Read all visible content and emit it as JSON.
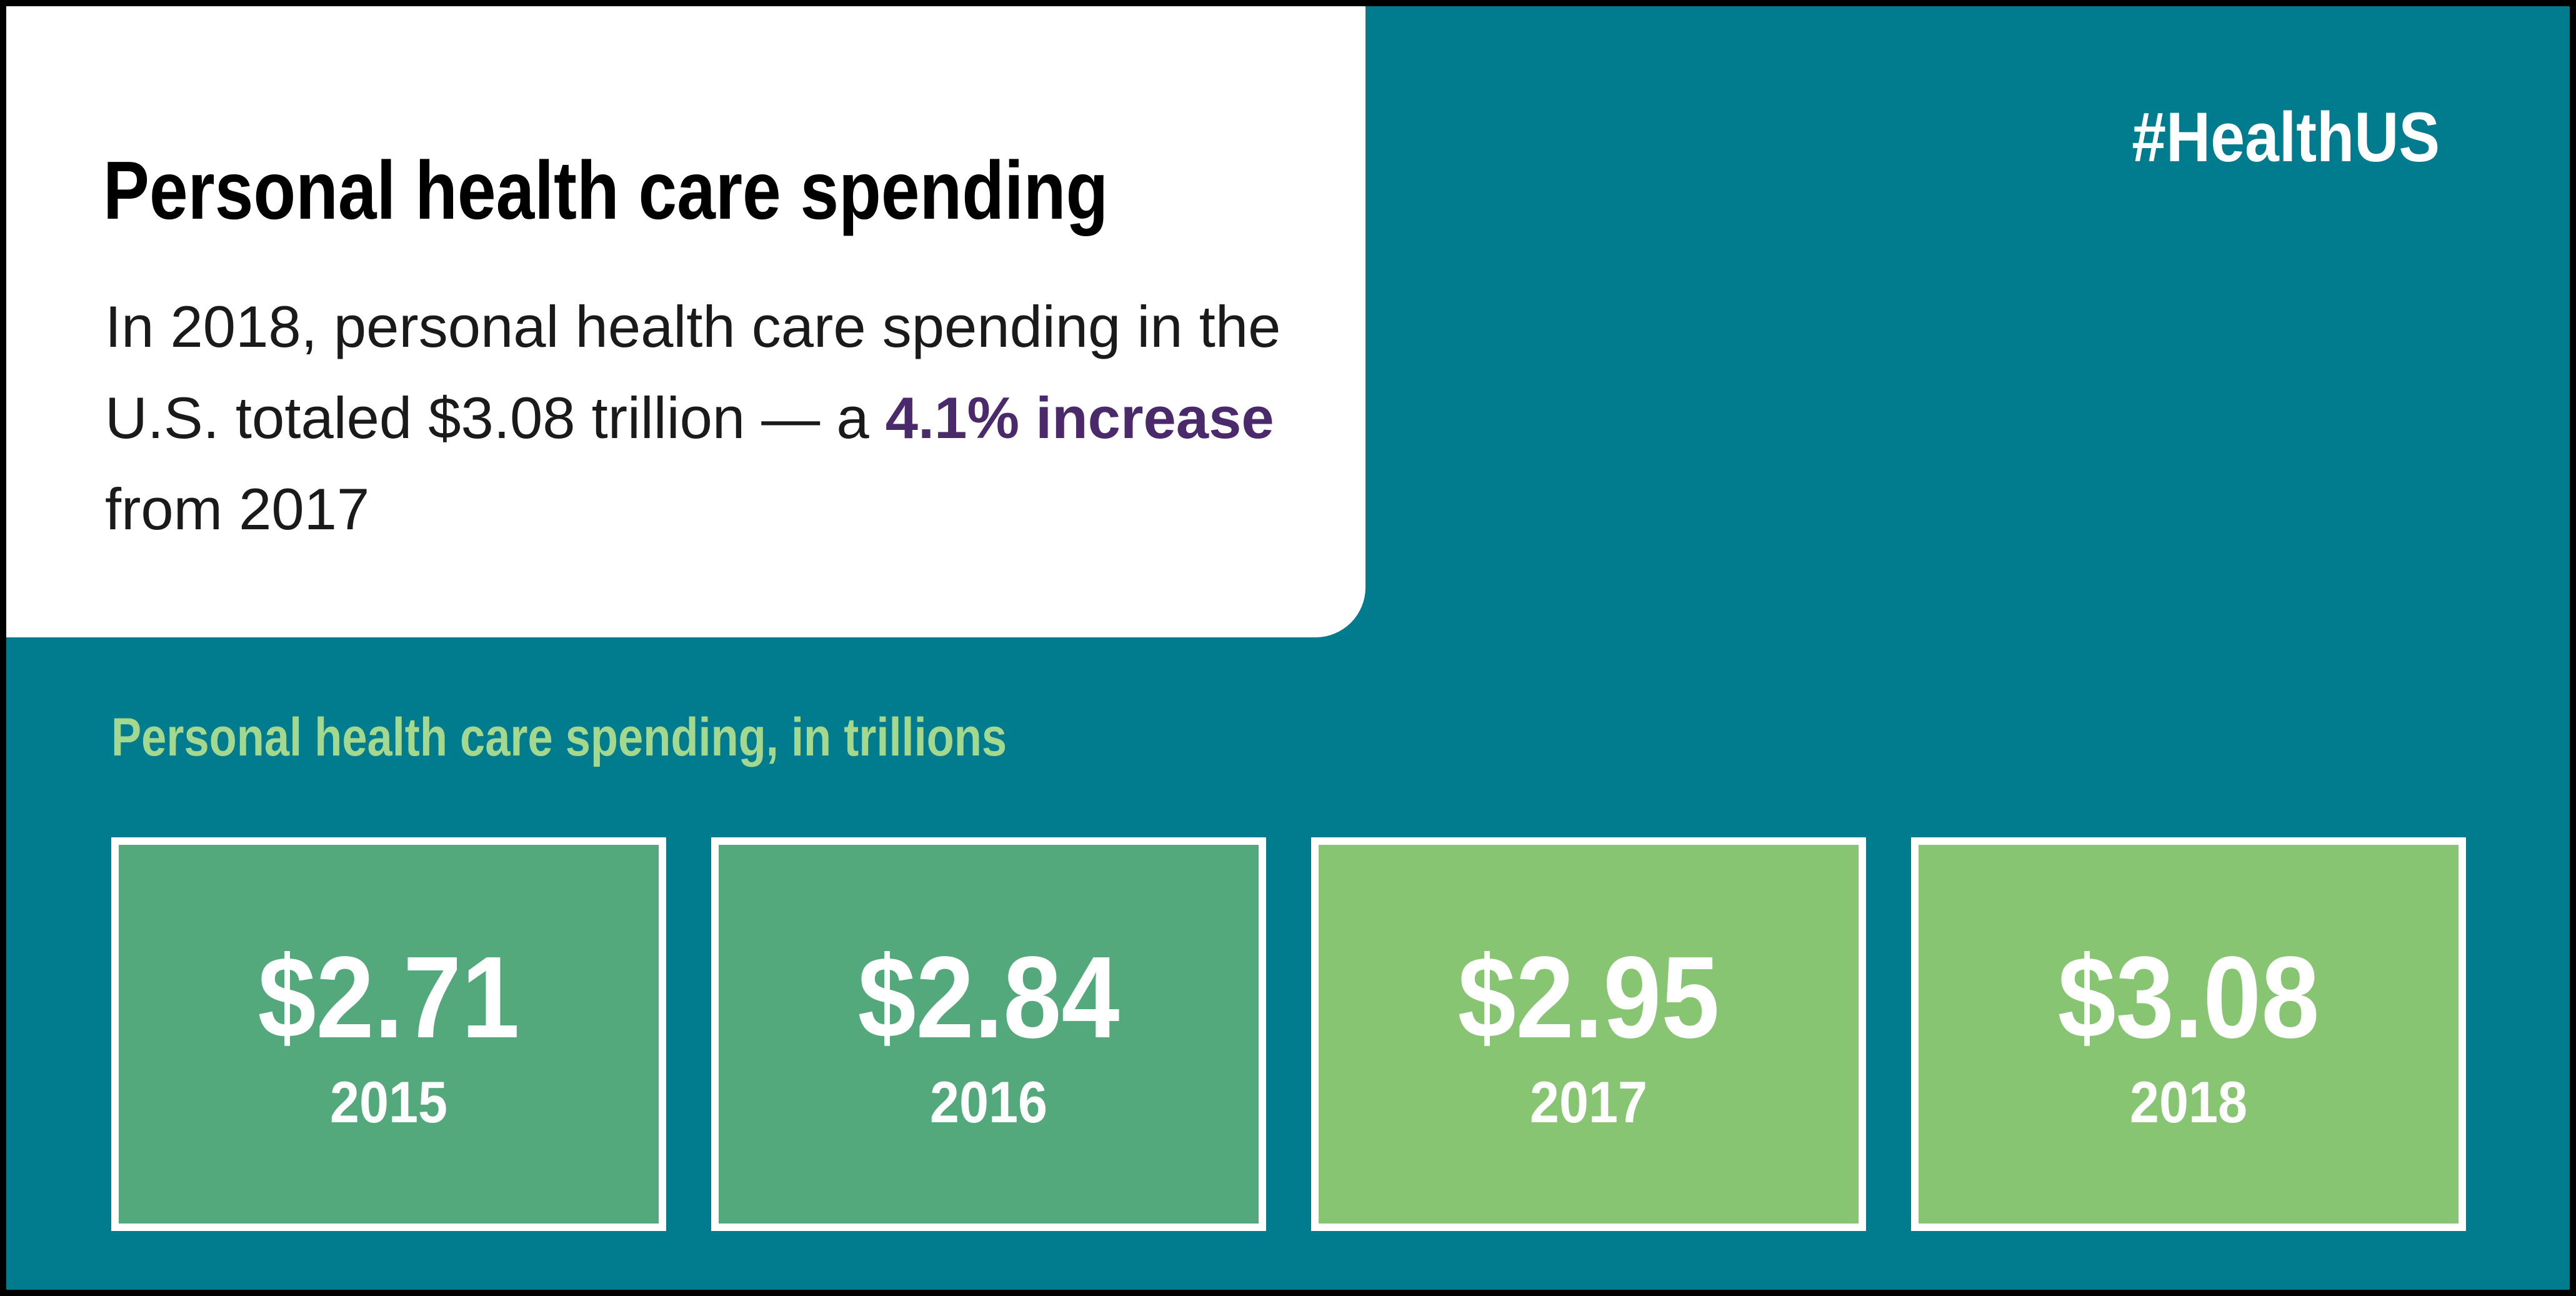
{
  "header": {
    "title": "Personal health care spending",
    "summary_before": "In 2018, personal health care spending in the U.S. totaled $3.08 trillion — a ",
    "summary_highlight": "4.1% increase",
    "summary_after": " from 2017",
    "hashtag": "#HealthUS"
  },
  "chart_data": {
    "type": "table",
    "title": "Personal health care spending,  in trillions",
    "categories": [
      "2015",
      "2016",
      "2017",
      "2018"
    ],
    "values": [
      2.71,
      2.84,
      2.95,
      3.08
    ],
    "value_labels": [
      "$2.71",
      "$2.84",
      "$2.95",
      "$3.08"
    ]
  },
  "colors": {
    "background": "#017b8e",
    "panel": "#ffffff",
    "highlight": "#4b2a6b",
    "subtitle": "#a5d88f",
    "card_dark": "#53a87c",
    "card_light": "#88c573"
  }
}
